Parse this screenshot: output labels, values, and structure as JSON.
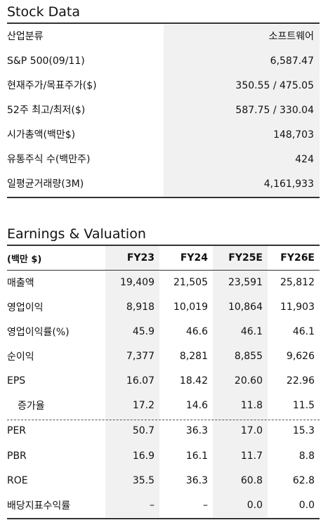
{
  "stock": {
    "title": "Stock Data",
    "rows": [
      {
        "label": "산업분류",
        "value": "소프트웨어"
      },
      {
        "label": "S&P 500(09/11)",
        "value": "6,587.47"
      },
      {
        "label": "현재주가/목표주가($)",
        "value": "350.55 / 475.05"
      },
      {
        "label": "52주 최고/최저($)",
        "value": "587.75 / 330.04"
      },
      {
        "label": "시가총액(백만$)",
        "value": "148,703"
      },
      {
        "label": "유통주식 수(백만주)",
        "value": "424"
      },
      {
        "label": "일평균거래량(3M)",
        "value": "4,161,933"
      }
    ]
  },
  "earnings": {
    "title": "Earnings & Valuation",
    "unit_label": "(백만 $)",
    "columns": [
      "FY23",
      "FY24",
      "FY25E",
      "FY26E"
    ],
    "rows": [
      {
        "label": "매출액",
        "values": [
          "19,409",
          "21,505",
          "23,591",
          "25,812"
        ]
      },
      {
        "label": "영업이익",
        "values": [
          "8,918",
          "10,019",
          "10,864",
          "11,903"
        ]
      },
      {
        "label": "영업이익률(%)",
        "values": [
          "45.9",
          "46.6",
          "46.1",
          "46.1"
        ]
      },
      {
        "label": "순이익",
        "values": [
          "7,377",
          "8,281",
          "8,855",
          "9,626"
        ]
      },
      {
        "label": "EPS",
        "values": [
          "16.07",
          "18.42",
          "20.60",
          "22.96"
        ]
      },
      {
        "label": "증가율",
        "values": [
          "17.2",
          "14.6",
          "11.8",
          "11.5"
        ],
        "indent": true
      },
      {
        "label": "PER",
        "values": [
          "50.7",
          "36.3",
          "17.0",
          "15.3"
        ]
      },
      {
        "label": "PBR",
        "values": [
          "16.9",
          "16.1",
          "11.7",
          "8.8"
        ]
      },
      {
        "label": "ROE",
        "values": [
          "35.5",
          "36.3",
          "60.8",
          "62.8"
        ]
      },
      {
        "label": "배당지표수익률",
        "values": [
          "–",
          "–",
          "0.0",
          "0.0"
        ]
      }
    ]
  }
}
